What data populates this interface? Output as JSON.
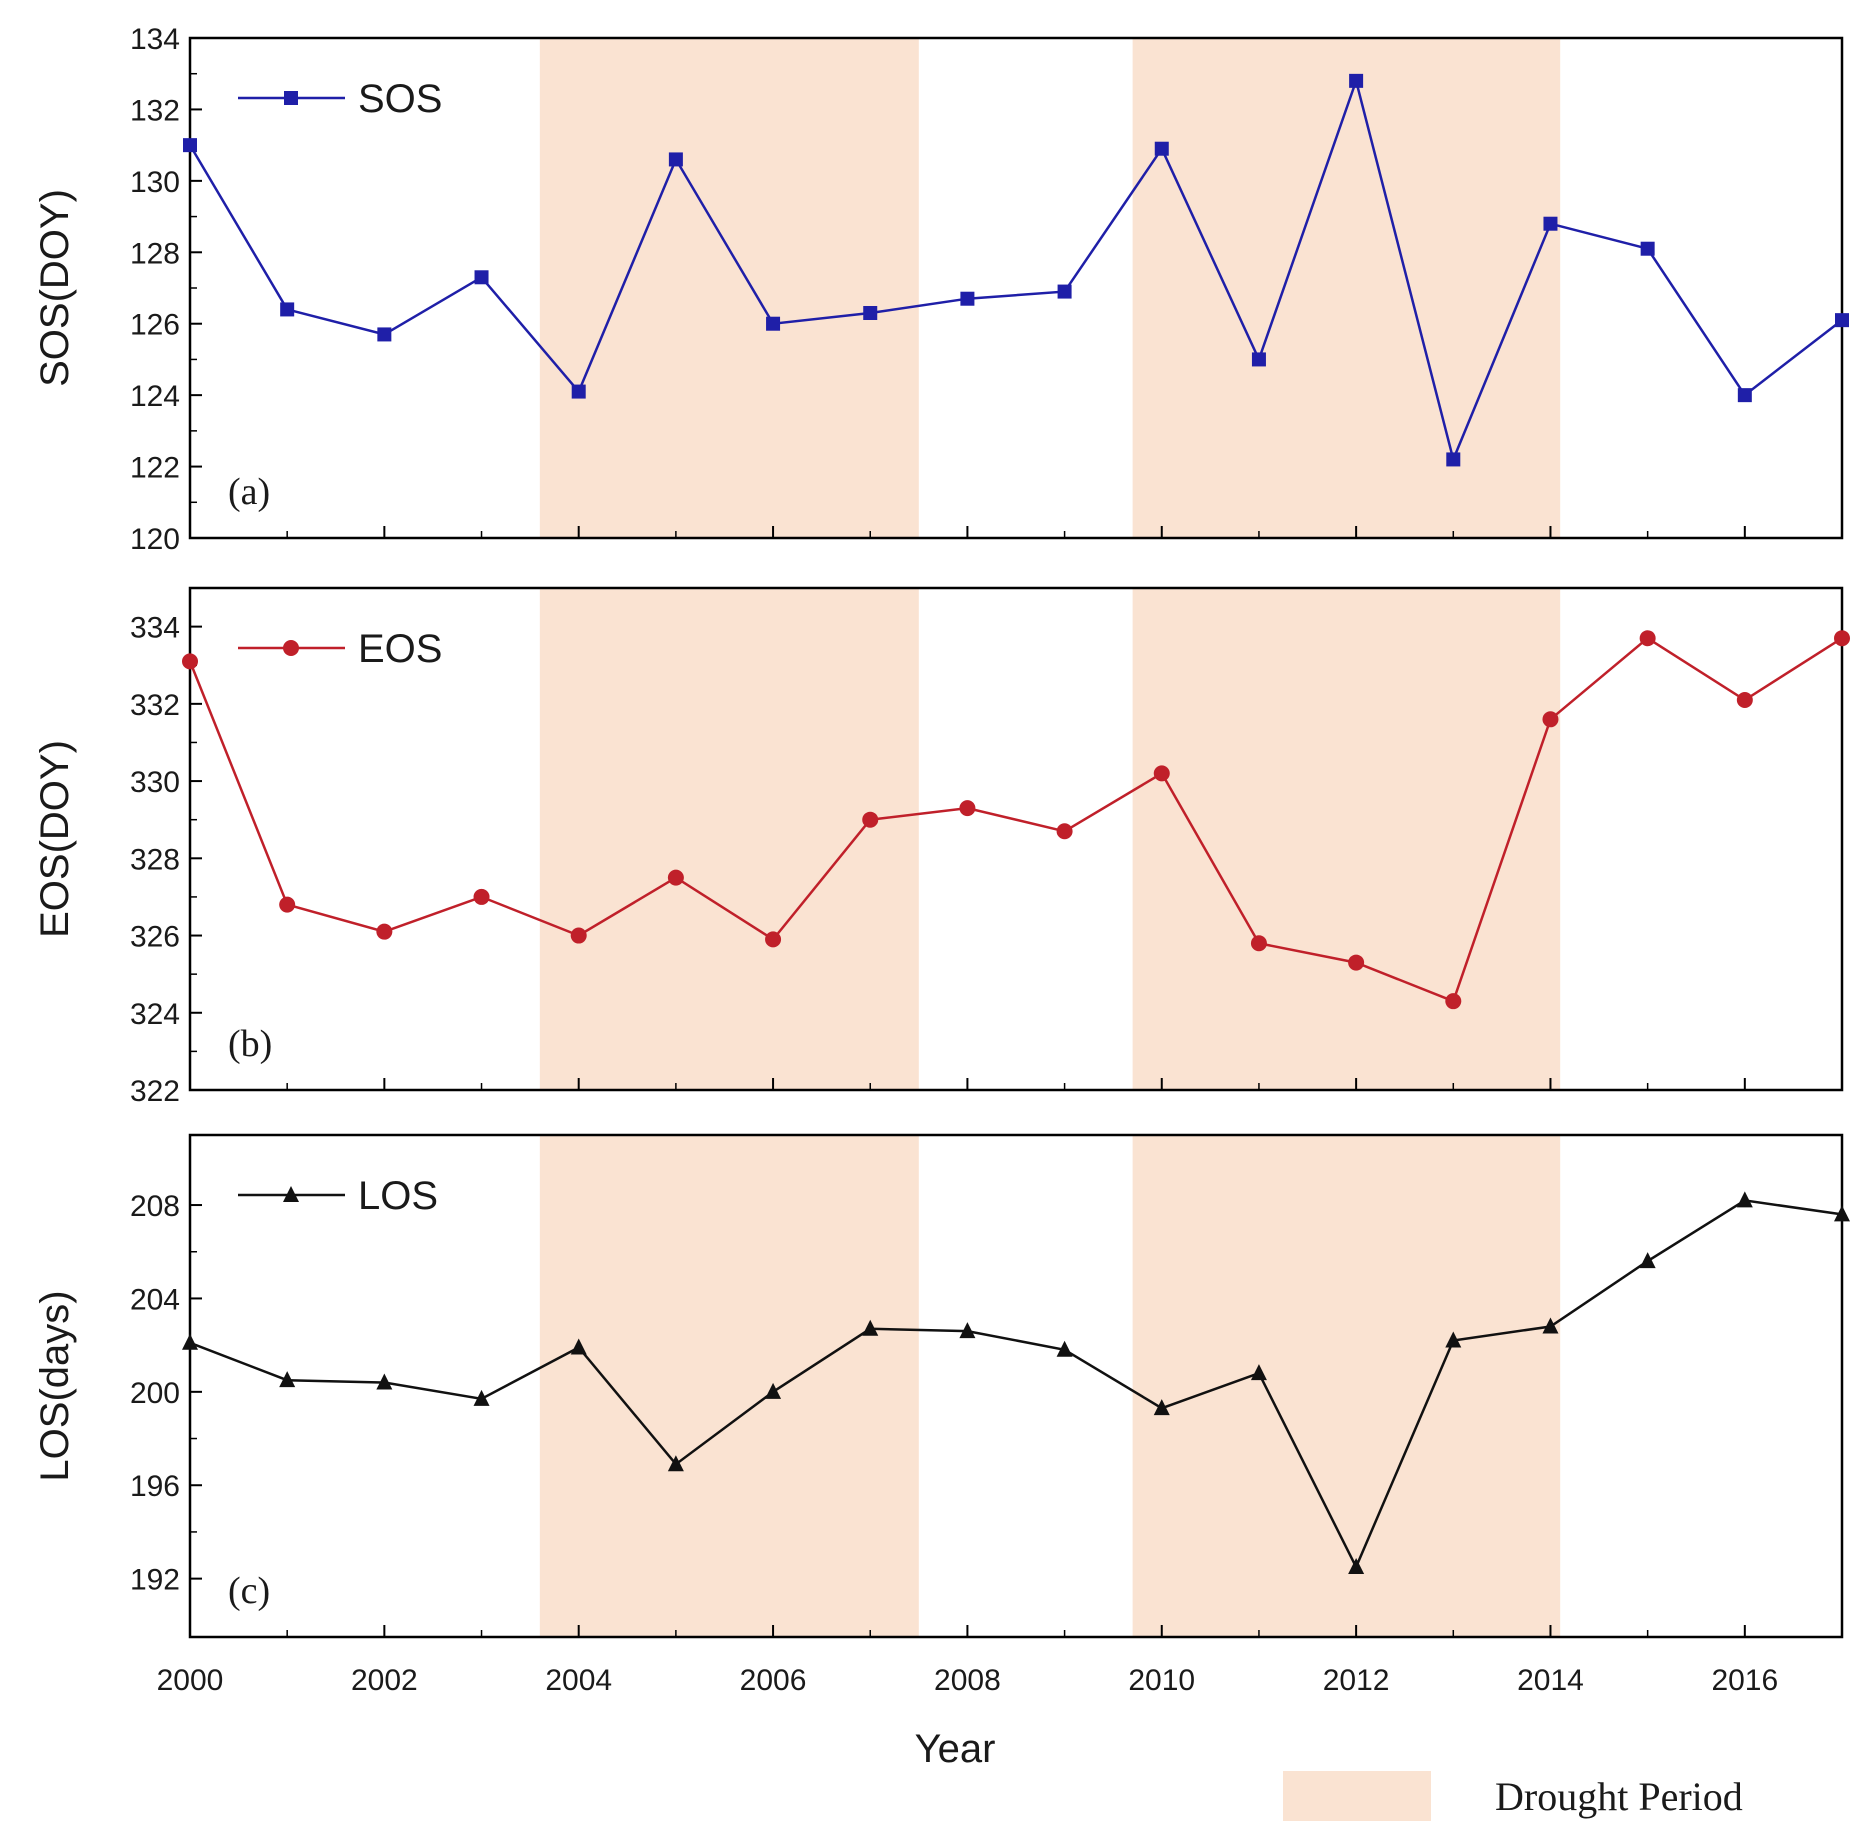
{
  "chart_data": [
    {
      "type": "line",
      "panel_label": "(a)",
      "ylabel": "SOS(DOY)",
      "ylim": [
        120,
        134
      ],
      "yticks": [
        "120",
        "122",
        "124",
        "126",
        "128",
        "130",
        "132",
        "134"
      ],
      "grid": false,
      "legend_placement": "top-left",
      "series": [
        {
          "name": "SOS",
          "color": "#1f1fa8",
          "marker": "square",
          "x": [
            2000,
            2001,
            2002,
            2003,
            2004,
            2005,
            2006,
            2007,
            2008,
            2009,
            2010,
            2011,
            2012,
            2013,
            2014,
            2015,
            2016,
            2017
          ],
          "values": [
            131.0,
            126.4,
            125.7,
            127.3,
            124.1,
            130.6,
            126.0,
            126.3,
            126.7,
            126.9,
            130.9,
            125.0,
            132.8,
            122.2,
            128.8,
            128.1,
            124.0,
            126.1
          ]
        }
      ]
    },
    {
      "type": "line",
      "panel_label": "(b)",
      "ylabel": "EOS(DOY)",
      "ylim": [
        322,
        335
      ],
      "yticks": [
        "322",
        "324",
        "326",
        "328",
        "330",
        "332",
        "334"
      ],
      "grid": false,
      "legend_placement": "top-left",
      "series": [
        {
          "name": "EOS",
          "color": "#c0202a",
          "marker": "circle",
          "x": [
            2000,
            2001,
            2002,
            2003,
            2004,
            2005,
            2006,
            2007,
            2008,
            2009,
            2010,
            2011,
            2012,
            2013,
            2014,
            2015,
            2016,
            2017
          ],
          "values": [
            333.1,
            326.8,
            326.1,
            327.0,
            326.0,
            327.5,
            325.9,
            329.0,
            329.3,
            328.7,
            330.2,
            325.8,
            325.3,
            324.3,
            331.6,
            333.7,
            332.1,
            333.7
          ]
        }
      ]
    },
    {
      "type": "line",
      "panel_label": "(c)",
      "ylabel": "LOS(days)",
      "xlabel": "Year",
      "ylim": [
        189.5,
        211
      ],
      "yticks": [
        "192",
        "196",
        "200",
        "204",
        "208"
      ],
      "xlim": [
        2000,
        2017
      ],
      "xticks": [
        "2000",
        "2002",
        "2004",
        "2006",
        "2008",
        "2010",
        "2012",
        "2014",
        "2016"
      ],
      "grid": false,
      "legend_placement": "top-left",
      "series": [
        {
          "name": "LOS",
          "color": "#111111",
          "marker": "triangle",
          "x": [
            2000,
            2001,
            2002,
            2003,
            2004,
            2005,
            2006,
            2007,
            2008,
            2009,
            2010,
            2011,
            2012,
            2013,
            2014,
            2015,
            2016,
            2017
          ],
          "values": [
            202.1,
            200.5,
            200.4,
            199.7,
            201.9,
            196.9,
            200.0,
            202.7,
            202.6,
            201.8,
            199.3,
            200.8,
            192.5,
            202.2,
            202.8,
            205.6,
            208.2,
            207.6
          ]
        }
      ]
    }
  ],
  "drought_periods": [
    [
      2003.6,
      2007.5
    ],
    [
      2009.7,
      2014.1
    ]
  ],
  "drought_color": "#fae3d2",
  "legend_drought": "Drought Period",
  "xlabel": "Year"
}
